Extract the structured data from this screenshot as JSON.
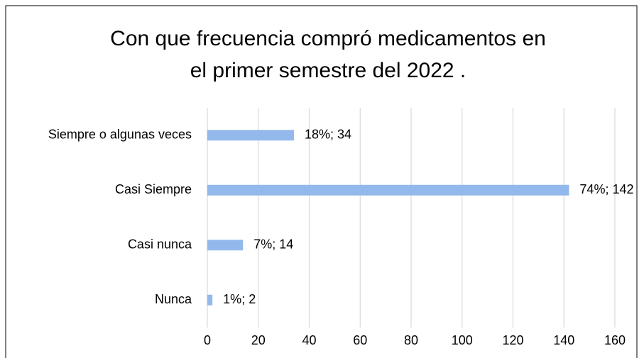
{
  "chart_data": {
    "type": "bar",
    "orientation": "horizontal",
    "title": [
      "Con que frecuencia compró medicamentos en",
      "el primer semestre del 2022 ."
    ],
    "categories": [
      "Siempre o algunas veces",
      "Casi Siempre",
      "Casi nunca",
      "Nunca"
    ],
    "values": [
      34,
      142,
      14,
      2
    ],
    "value_labels": [
      "18%; 34",
      "74%; 142",
      "7%; 14",
      "1%; 2"
    ],
    "color": "#93b9ec",
    "xlim": [
      0,
      160
    ],
    "xticks": [
      0,
      20,
      40,
      60,
      80,
      100,
      120,
      140,
      160
    ],
    "grid": true
  }
}
